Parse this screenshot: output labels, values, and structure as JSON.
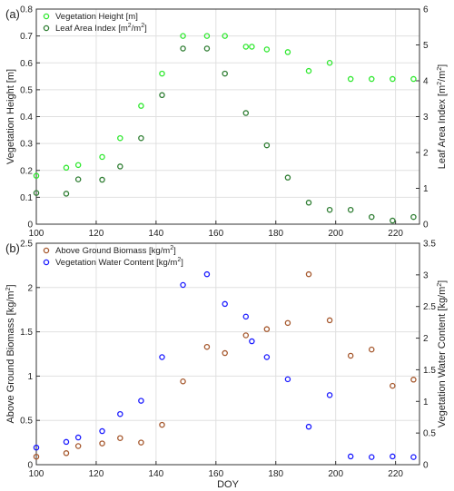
{
  "colors": {
    "vegetation_height": "#2ee82e",
    "leaf_area_index": "#2e7d32",
    "above_ground_biomass": "#a5572c",
    "vegetation_water_content": "#1a1aff",
    "grid": "#e0e0e0",
    "axis": "#333333"
  },
  "chart_data": [
    {
      "panel_label": "(a)",
      "type": "scatter",
      "xlabel": "",
      "ylabel": "Vegetation Height [m]",
      "y2label_prefix": "Leaf Area Index [m",
      "y2label_suffix": "]",
      "xlim": [
        100,
        228
      ],
      "ylim": [
        0,
        0.8
      ],
      "y2lim": [
        0,
        6
      ],
      "xticks": [
        "100",
        "120",
        "140",
        "160",
        "180",
        "200",
        "220"
      ],
      "yticks": [
        "0",
        "0.1",
        "0.2",
        "0.3",
        "0.4",
        "0.5",
        "0.6",
        "0.7",
        "0.8"
      ],
      "y2ticks": [
        "0",
        "1",
        "2",
        "3",
        "4",
        "5",
        "6"
      ],
      "grid": true,
      "legend": "top-left",
      "legend_labels": [
        "Vegetation Height [m]",
        "Leaf Area Index [m"
      ],
      "legend_label_tails": [
        "",
        "]"
      ],
      "series": [
        {
          "name": "Vegetation Height [m]",
          "axis": "left",
          "color": "#2ee82e",
          "x": [
            100,
            110,
            114,
            122,
            128,
            135,
            142,
            149,
            157,
            163,
            170,
            172,
            177,
            184,
            191,
            198,
            205,
            212,
            219,
            226
          ],
          "y": [
            0.18,
            0.21,
            0.22,
            0.25,
            0.32,
            0.44,
            0.56,
            0.7,
            0.7,
            0.7,
            0.66,
            0.66,
            0.65,
            0.64,
            0.57,
            0.6,
            0.54,
            0.54,
            0.54,
            0.54
          ]
        },
        {
          "name": "Leaf Area Index [m2/m2]",
          "axis": "right",
          "color": "#2e7d32",
          "x": [
            100,
            110,
            114,
            122,
            128,
            135,
            142,
            149,
            157,
            163,
            170,
            177,
            184,
            191,
            198,
            205,
            212,
            219,
            226
          ],
          "y": [
            0.87,
            0.85,
            1.25,
            1.24,
            1.61,
            2.4,
            3.6,
            4.9,
            4.9,
            4.2,
            3.1,
            2.2,
            1.3,
            0.6,
            0.4,
            0.4,
            0.2,
            0.1,
            0.2
          ]
        }
      ]
    },
    {
      "panel_label": "(b)",
      "type": "scatter",
      "xlabel": "DOY",
      "ylabel_prefix": "Above Ground Biomass [kg/m",
      "ylabel_suffix": "]",
      "y2label_prefix": "Vegetation Water Content [kg/m",
      "y2label_suffix": "]",
      "xlim": [
        100,
        228
      ],
      "ylim": [
        0,
        2.5
      ],
      "y2lim": [
        0,
        3.5
      ],
      "xticks": [
        "100",
        "120",
        "140",
        "160",
        "180",
        "200",
        "220"
      ],
      "yticks": [
        "0",
        "0.5",
        "1",
        "1.5",
        "2",
        "2.5"
      ],
      "y2ticks": [
        "0",
        "0.5",
        "1",
        "1.5",
        "2",
        "2.5",
        "3",
        "3.5"
      ],
      "grid": true,
      "legend": "top-left",
      "legend_labels": [
        "Above Ground Biomass [kg/m",
        "Vegetation Water Content [kg/m"
      ],
      "legend_label_tails": [
        "]",
        "]"
      ],
      "series": [
        {
          "name": "Above Ground Biomass [kg/m2]",
          "axis": "left",
          "color": "#a5572c",
          "x": [
            100,
            110,
            114,
            122,
            128,
            135,
            142,
            149,
            157,
            163,
            170,
            177,
            184,
            191,
            198,
            205,
            212,
            219,
            226
          ],
          "y": [
            0.09,
            0.13,
            0.21,
            0.24,
            0.3,
            0.25,
            0.45,
            0.94,
            1.33,
            1.26,
            1.46,
            1.53,
            1.6,
            2.15,
            1.63,
            1.23,
            1.3,
            0.89,
            0.96
          ]
        },
        {
          "name": "Vegetation Water Content [kg/m2]",
          "axis": "right",
          "color": "#1a1aff",
          "x": [
            100,
            110,
            114,
            122,
            128,
            135,
            142,
            149,
            157,
            163,
            170,
            172,
            177,
            184,
            191,
            198,
            205,
            212,
            219,
            226
          ],
          "y": [
            0.27,
            0.36,
            0.43,
            0.53,
            0.8,
            1.01,
            1.7,
            2.84,
            3.01,
            2.54,
            2.34,
            1.95,
            1.7,
            1.35,
            0.6,
            1.1,
            0.13,
            0.12,
            0.13,
            0.12
          ]
        }
      ]
    }
  ]
}
